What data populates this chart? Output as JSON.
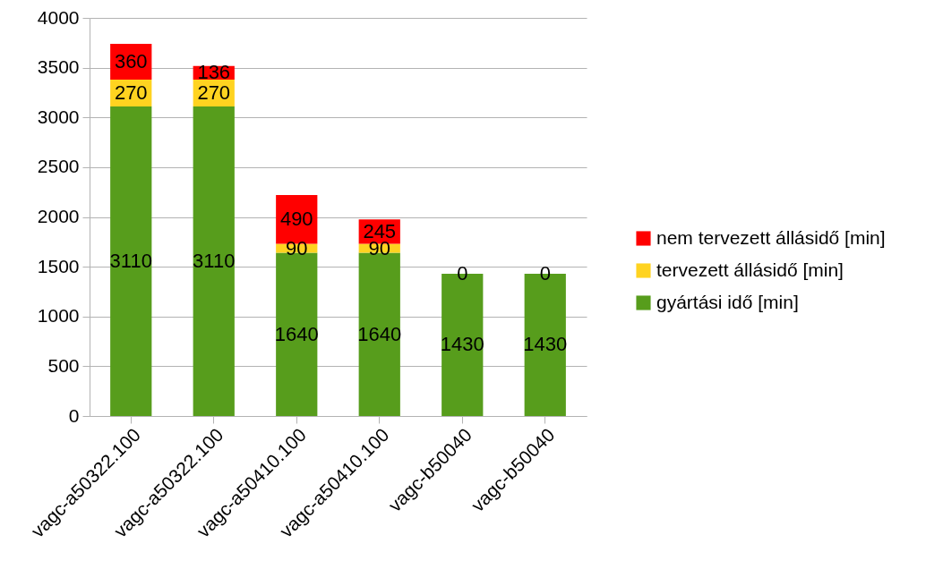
{
  "chart_data": {
    "type": "bar",
    "stacked": true,
    "data_labels": true,
    "categories": [
      "vagc-a50322.100",
      "vagc-a50322.100",
      "vagc-a50410.100",
      "vagc-a50410.100",
      "vagc-b50040",
      "vagc-b50040"
    ],
    "series": [
      {
        "name": "gyártási idő [min]",
        "color": "#579d1c",
        "values": [
          3110,
          3110,
          1640,
          1640,
          1430,
          1430
        ]
      },
      {
        "name": "tervezett állásidő [min]",
        "color": "#ffd320",
        "values": [
          270,
          270,
          90,
          90,
          0,
          0
        ]
      },
      {
        "name": "nem tervezett állásidő [min]",
        "color": "#ff0000",
        "values": [
          360,
          136,
          490,
          245,
          0,
          0
        ],
        "value_labels": [
          "360",
          "136",
          "490",
          "245",
          null,
          null
        ]
      }
    ],
    "ylim": [
      0,
      4000
    ],
    "yticks": [
      0,
      500,
      1000,
      1500,
      2000,
      2500,
      3000,
      3500,
      4000
    ],
    "grid": "y",
    "legend": "right"
  }
}
